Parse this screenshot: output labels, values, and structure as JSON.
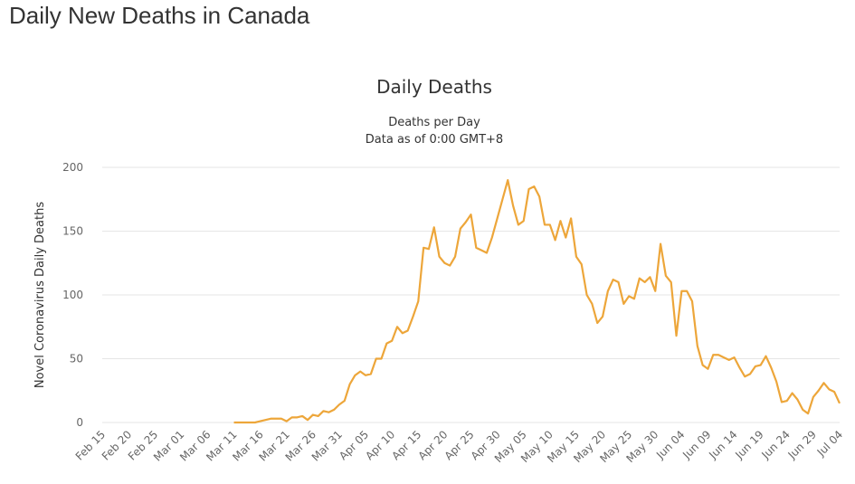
{
  "header": {
    "title": "Daily New Deaths in Canada"
  },
  "chart_data": {
    "type": "line",
    "title": "Daily Deaths",
    "subtitle": "Deaths per Day",
    "note": "Data as of 0:00 GMT+8",
    "y_label": "Novel Coronavirus Daily Deaths",
    "categories": [
      "Feb 15",
      null,
      null,
      null,
      null,
      "Feb 20",
      null,
      null,
      null,
      null,
      "Feb 25",
      null,
      null,
      null,
      null,
      "Mar 01",
      null,
      null,
      null,
      null,
      "Mar 06",
      null,
      null,
      null,
      null,
      "Mar 11",
      null,
      null,
      null,
      null,
      "Mar 16",
      null,
      null,
      null,
      null,
      "Mar 21",
      null,
      null,
      null,
      null,
      "Mar 26",
      null,
      null,
      null,
      null,
      "Mar 31",
      null,
      null,
      null,
      null,
      "Apr 05",
      null,
      null,
      null,
      null,
      "Apr 10",
      null,
      null,
      null,
      null,
      "Apr 15",
      null,
      null,
      null,
      null,
      "Apr 20",
      null,
      null,
      null,
      null,
      "Apr 25",
      null,
      null,
      null,
      null,
      "Apr 30",
      null,
      null,
      null,
      null,
      "May 05",
      null,
      null,
      null,
      null,
      "May 10",
      null,
      null,
      null,
      null,
      "May 15",
      null,
      null,
      null,
      null,
      "May 20",
      null,
      null,
      null,
      null,
      "May 25",
      null,
      null,
      null,
      null,
      "May 30",
      null,
      null,
      null,
      null,
      "Jun 04",
      null,
      null,
      null,
      null,
      "Jun 09",
      null,
      null,
      null,
      null,
      "Jun 14",
      null,
      null,
      null,
      null,
      "Jun 19",
      null,
      null,
      null,
      null,
      "Jun 24",
      null,
      null,
      null,
      null,
      "Jun 29",
      null,
      null,
      null,
      null,
      "Jul 04"
    ],
    "series": [
      {
        "color": "#eda63a",
        "values": [
          null,
          null,
          null,
          null,
          null,
          null,
          null,
          null,
          null,
          null,
          null,
          null,
          null,
          null,
          null,
          null,
          null,
          null,
          null,
          null,
          null,
          null,
          null,
          null,
          null,
          0,
          0,
          0,
          0,
          0,
          1,
          2,
          3,
          3,
          3,
          1,
          4,
          4,
          5,
          2,
          6,
          5,
          9,
          8,
          10,
          14,
          17,
          30,
          37,
          40,
          37,
          38,
          50,
          50,
          62,
          64,
          75,
          70,
          72,
          83,
          95,
          137,
          136,
          153,
          130,
          125,
          123,
          130,
          152,
          157,
          163,
          137,
          135,
          133,
          145,
          160,
          175,
          190,
          170,
          155,
          158,
          183,
          185,
          177,
          155,
          155,
          143,
          158,
          145,
          160,
          130,
          124,
          100,
          93,
          78,
          83,
          103,
          112,
          110,
          93,
          99,
          97,
          113,
          110,
          114,
          103,
          140,
          115,
          110,
          68,
          103,
          103,
          95,
          60,
          45,
          42,
          53,
          53,
          51,
          49,
          51,
          43,
          36,
          38,
          44,
          45,
          52,
          43,
          32,
          16,
          17,
          23,
          18,
          10,
          7,
          20,
          25,
          31,
          26,
          24,
          15
        ]
      }
    ],
    "ylim": [
      0,
      200
    ],
    "yticks": [
      0,
      50,
      100,
      150,
      200
    ],
    "grid": true
  }
}
